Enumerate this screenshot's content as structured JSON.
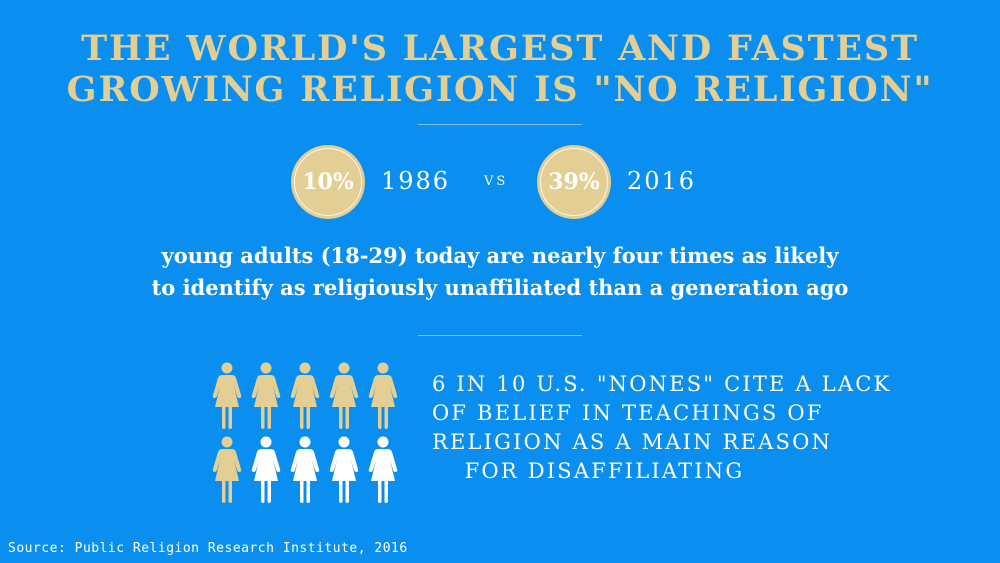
{
  "title": {
    "line1": "THE WORLD'S LARGEST AND FASTEST",
    "line2": "GROWING RELIGION IS \"NO RELIGION\""
  },
  "comparison": {
    "left": {
      "percent": "10%",
      "year": "1986"
    },
    "vs": "VS",
    "right": {
      "percent": "39%",
      "year": "2016"
    }
  },
  "subtitle": {
    "line1": "young adults (18-29) today are nearly four times as likely",
    "line2": "to identify as religiously unaffiliated than a generation ago"
  },
  "figures": {
    "total": 10,
    "highlighted": 6,
    "icon": "person-icon",
    "highlight_color": "#e3cf94",
    "base_color": "#ffffff"
  },
  "stat": {
    "line1": "6 IN 10 U.S. \"NONES\" CITE A LACK",
    "line2": "OF BELIEF IN TEACHINGS OF",
    "line3": "RELIGION AS A MAIN REASON",
    "line4": "FOR DISAFFILIATING"
  },
  "source": "Source: Public Religion Research Institute, 2016",
  "colors": {
    "background": "#0a8ff0",
    "accent": "#e3cf94",
    "text": "#ffffff"
  }
}
